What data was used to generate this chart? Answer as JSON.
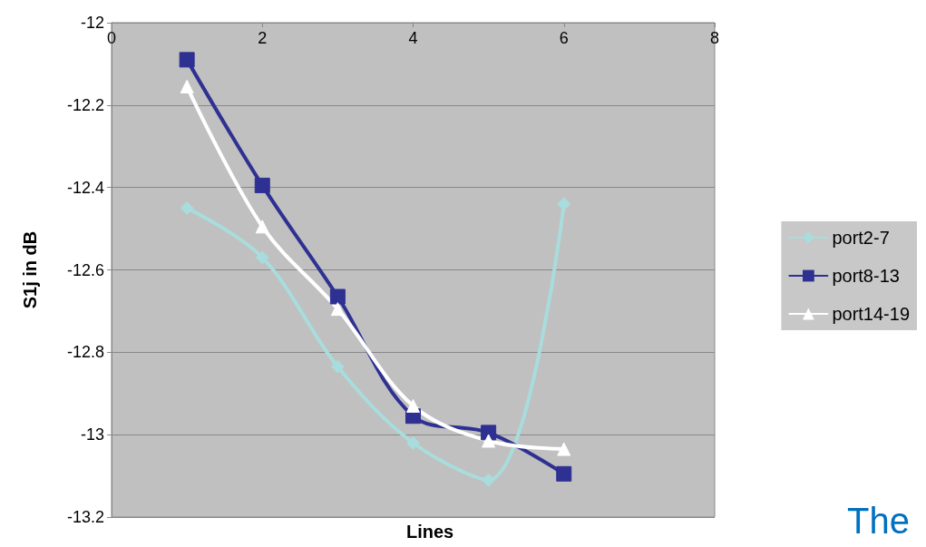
{
  "chart_data": {
    "type": "line",
    "xlabel": "Lines",
    "ylabel": "S1j in dB",
    "x": [
      1,
      2,
      3,
      4,
      5,
      6
    ],
    "series": [
      {
        "name": "port2-7",
        "color": "#a9dcdc",
        "marker": "diamond",
        "values": [
          -12.45,
          -12.57,
          -12.835,
          -13.02,
          -13.11,
          -12.44
        ]
      },
      {
        "name": "port8-13",
        "color": "#2e3192",
        "marker": "square",
        "values": [
          -12.09,
          -12.395,
          -12.665,
          -12.955,
          -12.995,
          -13.095
        ]
      },
      {
        "name": "port14-19",
        "color": "#ffffff",
        "marker": "triangle",
        "values": [
          -12.155,
          -12.495,
          -12.695,
          -12.93,
          -13.015,
          -13.035
        ]
      }
    ],
    "xlim": [
      0,
      8
    ],
    "xticks": [
      0,
      2,
      4,
      6,
      8
    ],
    "ylim": [
      -13.2,
      -12
    ],
    "yticks": [
      -13.2,
      -13,
      -12.8,
      -12.6,
      -12.4,
      -12.2,
      -12
    ],
    "grid": "y",
    "legend": "right",
    "annotations": [
      "The"
    ]
  }
}
